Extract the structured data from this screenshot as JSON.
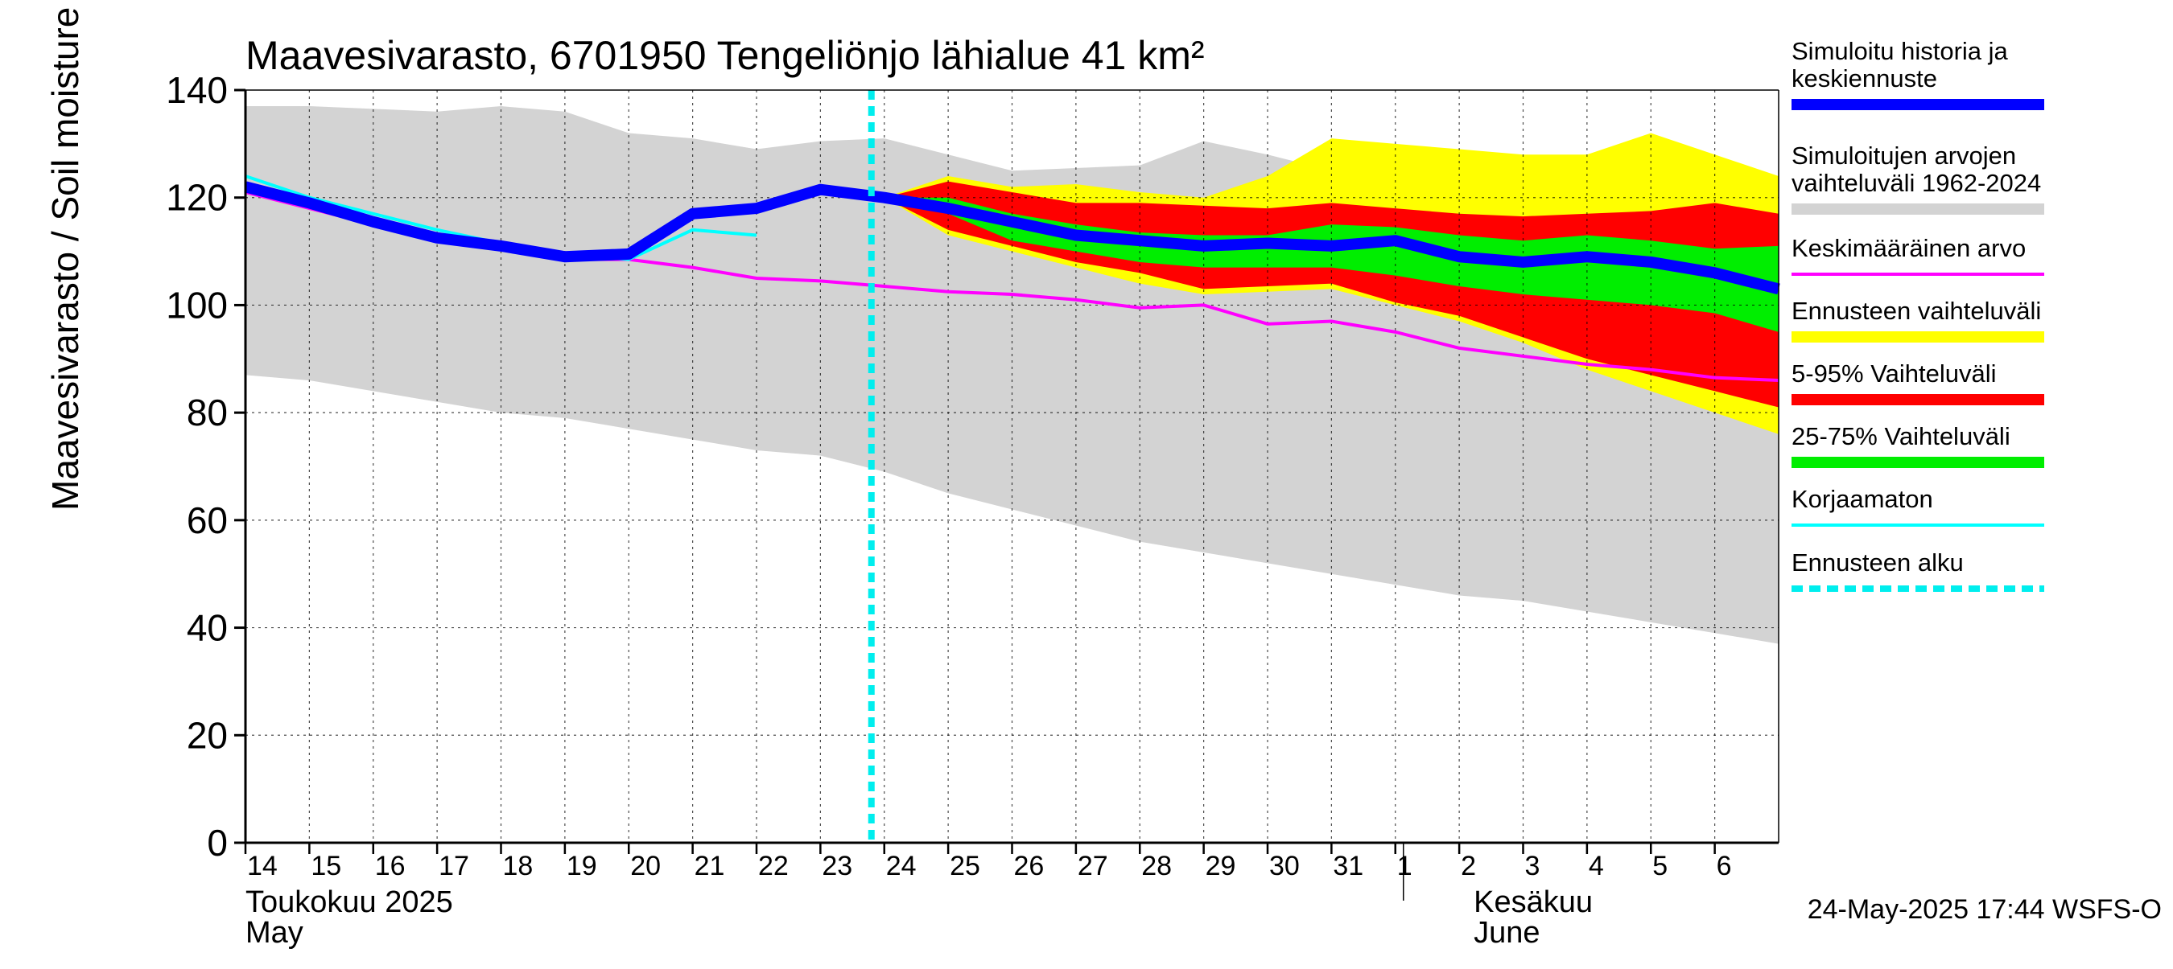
{
  "chart_data": {
    "type": "area",
    "title": "Maavesivarasto, 6701950 Tengeliönjo lähialue 41 km²",
    "ylabel": "Maavesivarasto / Soil moisture   mm",
    "ylim": [
      0,
      140
    ],
    "yticks": [
      0,
      20,
      40,
      60,
      80,
      100,
      120,
      140
    ],
    "xlim": [
      0,
      24
    ],
    "day_labels": [
      "14",
      "15",
      "16",
      "17",
      "18",
      "19",
      "20",
      "21",
      "22",
      "23",
      "24",
      "25",
      "26",
      "27",
      "28",
      "29",
      "30",
      "31",
      "1",
      "2",
      "3",
      "4",
      "5",
      "6"
    ],
    "month_labels": [
      {
        "line1": "Toukokuu  2025",
        "line2": "May",
        "day_index": 0
      },
      {
        "line1": "Kesäkuu",
        "line2": "June",
        "day_index": 19
      }
    ],
    "month_divider_day": 18,
    "forecast_start": 10,
    "timestamp": "24-May-2025 17:44 WSFS-O",
    "series": {
      "historical_range": {
        "name": "Simuloitujen arvojen vaihteluväli 1962-2024",
        "upper_x": [
          0,
          1,
          2,
          3,
          4,
          5,
          6,
          7,
          8,
          9,
          10,
          11,
          12,
          13,
          14,
          15,
          16,
          17,
          18,
          19,
          20,
          21,
          22,
          23,
          24
        ],
        "upper": [
          137,
          137,
          136.5,
          136,
          137,
          136,
          132,
          131,
          129,
          130.5,
          131,
          128,
          125,
          125.5,
          126,
          130.5,
          128,
          125,
          122,
          121,
          121,
          120,
          117,
          121,
          123
        ],
        "lower_x": [
          0,
          1,
          2,
          3,
          4,
          5,
          6,
          7,
          8,
          9,
          10,
          11,
          12,
          13,
          14,
          15,
          16,
          17,
          18,
          19,
          20,
          21,
          22,
          23,
          24
        ],
        "lower": [
          87,
          86,
          84,
          82,
          80,
          79,
          77,
          75,
          73,
          72,
          69,
          65,
          62,
          59,
          56,
          54,
          52,
          50,
          48,
          46,
          45,
          43,
          41,
          39,
          37
        ]
      },
      "forecast_range": {
        "name": "Ennusteen vaihteluväli",
        "x": [
          10,
          11,
          12,
          13,
          14,
          15,
          16,
          17,
          18,
          19,
          20,
          21,
          22,
          23,
          24
        ],
        "upper": [
          120,
          124,
          122,
          122.5,
          121,
          120,
          124,
          131,
          130,
          129,
          128,
          128,
          132,
          128,
          124
        ],
        "lower": [
          120,
          113,
          110,
          107,
          104,
          102,
          102.5,
          103,
          100,
          97,
          93,
          88,
          84,
          80,
          76
        ]
      },
      "p5_95_range": {
        "name": "5-95% Vaihteluväli",
        "x": [
          10,
          11,
          12,
          13,
          14,
          15,
          16,
          17,
          18,
          19,
          20,
          21,
          22,
          23,
          24
        ],
        "upper": [
          120,
          123,
          121,
          119,
          119,
          118.5,
          118,
          119,
          118,
          117,
          116.5,
          117,
          117.5,
          119,
          117
        ],
        "lower": [
          120,
          114,
          111,
          108,
          106,
          103,
          103.5,
          104,
          100.5,
          98,
          94,
          90,
          87,
          84,
          81
        ]
      },
      "p25_75_range": {
        "name": "25-75% Vaihteluväli",
        "x": [
          10,
          11,
          12,
          13,
          14,
          15,
          16,
          17,
          18,
          19,
          20,
          21,
          22,
          23,
          24
        ],
        "upper": [
          120,
          120,
          117,
          115,
          113.5,
          113,
          113,
          115,
          114.5,
          113,
          112,
          113,
          112,
          110.5,
          111
        ],
        "lower": [
          120,
          117,
          112,
          110,
          108,
          107,
          107,
          107,
          105.5,
          103.5,
          102,
          101,
          100,
          98.5,
          95
        ]
      },
      "simulated_history": {
        "name": "Simuloitu historia ja keskiennuste",
        "x": [
          0,
          1,
          2,
          3,
          4,
          5,
          6,
          7,
          8,
          9,
          10,
          11,
          12,
          13,
          14,
          15,
          16,
          17,
          18,
          19,
          20,
          21,
          22,
          23,
          24
        ],
        "y": [
          122,
          119,
          115.5,
          112.5,
          111,
          109,
          109.5,
          117,
          118,
          121.5,
          120,
          118,
          115.5,
          113,
          112,
          111,
          111.5,
          111,
          112,
          109,
          108,
          109,
          108,
          106,
          103
        ]
      },
      "mean": {
        "name": "Keskimääräinen arvo",
        "x": [
          0,
          1,
          2,
          3,
          4,
          5,
          6,
          7,
          8,
          9,
          10,
          11,
          12,
          13,
          14,
          15,
          16,
          17,
          18,
          19,
          20,
          21,
          22,
          23,
          24
        ],
        "y": [
          121,
          118,
          115,
          112,
          110.5,
          108.5,
          108.5,
          107,
          105,
          104.5,
          103.5,
          102.5,
          102,
          101,
          99.5,
          100,
          96.5,
          97,
          95,
          92,
          90.5,
          89,
          88,
          86.5,
          86
        ]
      },
      "uncorrected": {
        "name": "Korjaamaton",
        "x": [
          0,
          1,
          2,
          3,
          4,
          5,
          6,
          7,
          8
        ],
        "y": [
          124,
          120,
          117,
          114,
          111.5,
          109.5,
          108.5,
          114,
          113
        ]
      }
    },
    "legend": [
      {
        "label": "Simuloitu historia ja keskiennuste",
        "color": "#0000ff",
        "style": "thick"
      },
      {
        "label": "Simuloitujen arvojen vaihteluväli 1962-2024",
        "color": "#d3d3d3",
        "style": "thick"
      },
      {
        "label": "Keskimääräinen arvo",
        "color": "#ff00ff",
        "style": "thin"
      },
      {
        "label": "Ennusteen vaihteluväli",
        "color": "#ffff00",
        "style": "thick"
      },
      {
        "label": "5-95% Vaihteluväli",
        "color": "#ff0000",
        "style": "thick"
      },
      {
        "label": "25-75% Vaihteluväli",
        "color": "#00ee00",
        "style": "thick"
      },
      {
        "label": "Korjaamaton",
        "color": "#00ffff",
        "style": "thin"
      },
      {
        "label": "Ennusteen alku",
        "color": "#00eeee",
        "style": "dashed"
      }
    ],
    "colors": {
      "historical_range": "#d3d3d3",
      "forecast_range": "#ffff00",
      "p5_95": "#ff0000",
      "p25_75": "#00ee00",
      "simulated": "#0000ff",
      "mean": "#ff00ff",
      "uncorrected": "#00ffff",
      "forecast_start": "#00eeee",
      "grid": "#000000"
    }
  }
}
